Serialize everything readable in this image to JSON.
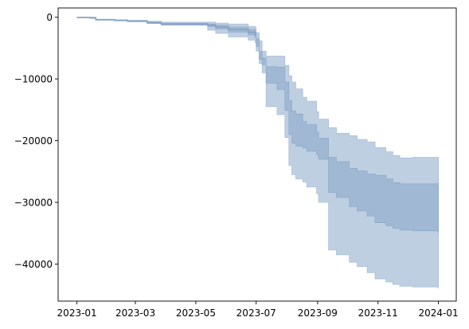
{
  "chart_data": {
    "type": "area",
    "title": "",
    "xlabel": "",
    "ylabel": "",
    "x_range": [
      "2022-12-13",
      "2024-01-19"
    ],
    "y_range": [
      -46000,
      1500
    ],
    "grid": false,
    "x_ticks": [
      {
        "date": "2023-01-01",
        "label": "2023-01"
      },
      {
        "date": "2023-03-01",
        "label": "2023-03"
      },
      {
        "date": "2023-05-01",
        "label": "2023-05"
      },
      {
        "date": "2023-07-01",
        "label": "2023-07"
      },
      {
        "date": "2023-09-01",
        "label": "2023-09"
      },
      {
        "date": "2023-11-01",
        "label": "2023-11"
      },
      {
        "date": "2024-01-01",
        "label": "2024-01"
      }
    ],
    "y_ticks": [
      {
        "value": 0,
        "label": "0"
      },
      {
        "value": -10000,
        "label": "−10000"
      },
      {
        "value": -20000,
        "label": "−20000"
      },
      {
        "value": -30000,
        "label": "−30000"
      },
      {
        "value": -40000,
        "label": "−40000"
      }
    ],
    "colors": {
      "outer_band": "#9db6d2",
      "inner_band": "#87a5c6",
      "median_line": "#86a3c5"
    },
    "bands": [
      {
        "role": "outer",
        "x": [
          "2023-01-01",
          "2023-01-14",
          "2023-01-20",
          "2023-02-08",
          "2023-02-21",
          "2023-03-13",
          "2023-03-27",
          "2023-05-13",
          "2023-05-21",
          "2023-06-03",
          "2023-06-23",
          "2023-06-30",
          "2023-07-01",
          "2023-07-04",
          "2023-07-07",
          "2023-07-11",
          "2023-07-22",
          "2023-07-30",
          "2023-08-03",
          "2023-08-06",
          "2023-08-10",
          "2023-08-17",
          "2023-08-21",
          "2023-08-31",
          "2023-09-02",
          "2023-09-12",
          "2023-09-20",
          "2023-10-03",
          "2023-10-11",
          "2023-10-21",
          "2023-10-29",
          "2023-11-09",
          "2023-11-16",
          "2023-11-23",
          "2023-12-06",
          "2023-12-31",
          "2024-01-01"
        ],
        "upper": [
          0,
          0,
          -400,
          -450,
          -500,
          -650,
          -800,
          -800,
          -950,
          -1100,
          -1500,
          -1700,
          -2500,
          -3800,
          -5500,
          -6300,
          -6300,
          -7800,
          -9500,
          -10500,
          -11600,
          -13000,
          -13600,
          -15300,
          -16500,
          -17900,
          -18800,
          -19200,
          -19800,
          -20200,
          -21100,
          -21800,
          -22400,
          -22800,
          -22700,
          -22700,
          -22800
        ],
        "lower": [
          -100,
          -200,
          -500,
          -600,
          -750,
          -1000,
          -1300,
          -2100,
          -2600,
          -3200,
          -3700,
          -4100,
          -5500,
          -7500,
          -9000,
          -14500,
          -15800,
          -19500,
          -24000,
          -25500,
          -26200,
          -26700,
          -27500,
          -28600,
          -30000,
          -37700,
          -38500,
          -39700,
          -40400,
          -41400,
          -42400,
          -42900,
          -43300,
          -43600,
          -43700,
          -43800,
          -44000
        ]
      },
      {
        "role": "inner",
        "x": [
          "2023-01-01",
          "2023-01-14",
          "2023-01-20",
          "2023-02-08",
          "2023-02-21",
          "2023-03-13",
          "2023-03-27",
          "2023-05-13",
          "2023-05-21",
          "2023-06-03",
          "2023-06-23",
          "2023-06-30",
          "2023-07-01",
          "2023-07-04",
          "2023-07-07",
          "2023-07-11",
          "2023-07-22",
          "2023-07-30",
          "2023-08-03",
          "2023-08-06",
          "2023-08-10",
          "2023-08-17",
          "2023-08-21",
          "2023-08-31",
          "2023-09-02",
          "2023-09-12",
          "2023-09-20",
          "2023-10-03",
          "2023-10-11",
          "2023-10-21",
          "2023-10-29",
          "2023-11-09",
          "2023-11-16",
          "2023-11-23",
          "2023-12-06",
          "2023-12-31",
          "2024-01-01"
        ],
        "upper": [
          0,
          -50,
          -350,
          -420,
          -550,
          -800,
          -1000,
          -1100,
          -1300,
          -1600,
          -2000,
          -2500,
          -3500,
          -5600,
          -6600,
          -8000,
          -8100,
          -10500,
          -13500,
          -15200,
          -15700,
          -16900,
          -17400,
          -18600,
          -19600,
          -22700,
          -23400,
          -24500,
          -24900,
          -25400,
          -25600,
          -26200,
          -26800,
          -27000,
          -27000,
          -27000,
          -27400
        ],
        "lower": [
          -50,
          -100,
          -450,
          -520,
          -650,
          -1000,
          -1200,
          -1500,
          -1900,
          -2400,
          -2900,
          -3300,
          -4700,
          -6800,
          -7700,
          -10700,
          -11700,
          -15100,
          -19000,
          -20400,
          -20900,
          -21200,
          -21700,
          -22300,
          -23000,
          -28400,
          -29200,
          -30700,
          -31400,
          -32200,
          -33300,
          -33800,
          -34200,
          -34500,
          -34600,
          -34700,
          -35000
        ]
      }
    ],
    "median": {
      "x": [
        "2023-01-01",
        "2023-01-14",
        "2023-01-20",
        "2023-02-08",
        "2023-02-21",
        "2023-03-13",
        "2023-03-27",
        "2023-05-13",
        "2023-05-21",
        "2023-06-03",
        "2023-06-23",
        "2023-06-30"
      ],
      "y": [
        -20,
        -80,
        -400,
        -470,
        -600,
        -900,
        -1100,
        -1300,
        -1600,
        -2000,
        -2450,
        -2900
      ]
    }
  }
}
